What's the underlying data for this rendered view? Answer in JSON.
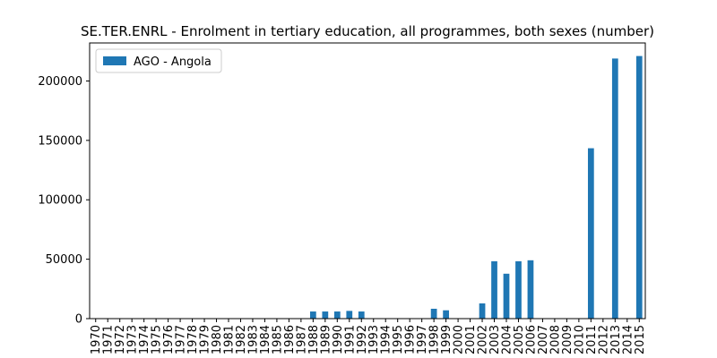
{
  "chart_data": {
    "type": "bar",
    "title": "SE.TER.ENRL - Enrolment in tertiary education, all programmes, both sexes (number)",
    "categories": [
      "1970",
      "1971",
      "1972",
      "1973",
      "1974",
      "1975",
      "1976",
      "1977",
      "1978",
      "1979",
      "1980",
      "1981",
      "1982",
      "1983",
      "1984",
      "1985",
      "1986",
      "1987",
      "1988",
      "1989",
      "1990",
      "1991",
      "1992",
      "1993",
      "1994",
      "1995",
      "1996",
      "1997",
      "1998",
      "1999",
      "2000",
      "2001",
      "2002",
      "2003",
      "2004",
      "2005",
      "2006",
      "2007",
      "2008",
      "2009",
      "2010",
      "2011",
      "2012",
      "2013",
      "2014",
      "2015"
    ],
    "series": [
      {
        "name": "AGO - Angola",
        "color": "#1f77b4",
        "values": [
          null,
          null,
          null,
          null,
          null,
          null,
          null,
          null,
          null,
          null,
          null,
          null,
          null,
          null,
          null,
          null,
          null,
          null,
          6000,
          6000,
          6000,
          6500,
          6000,
          null,
          null,
          null,
          null,
          null,
          8300,
          7000,
          null,
          null,
          12800,
          48300,
          37800,
          48300,
          49100,
          null,
          null,
          null,
          null,
          143400,
          null,
          218900,
          null,
          221000
        ]
      }
    ],
    "ylim": [
      0,
      232000
    ],
    "yticks": [
      0,
      50000,
      100000,
      150000,
      200000
    ],
    "legend": "upper left"
  }
}
